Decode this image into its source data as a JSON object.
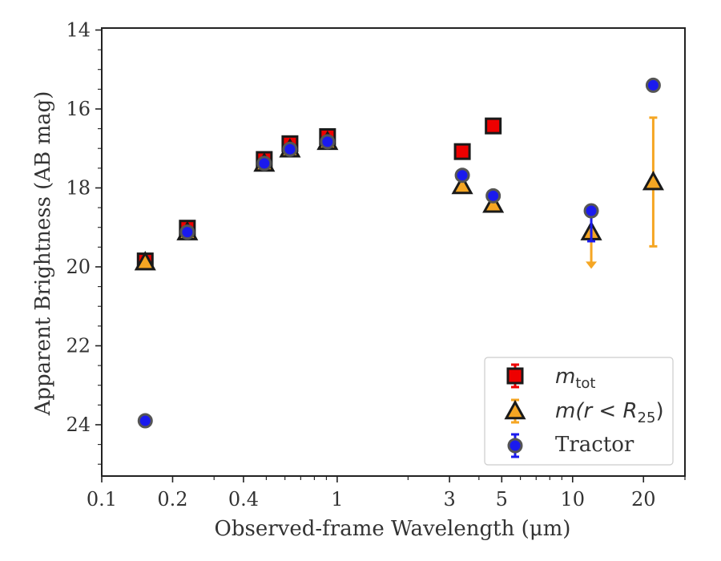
{
  "chart_data": {
    "type": "scatter",
    "xlabel": "Observed-frame Wavelength (μm)",
    "ylabel": "Apparent Brightness (AB mag)",
    "xscale": "log",
    "xlim": [
      0.1,
      30
    ],
    "ylim": [
      25.3,
      13.95
    ],
    "y_inverted": true,
    "x_ticks": [
      {
        "value": 0.1,
        "label": "0.1"
      },
      {
        "value": 0.2,
        "label": "0.2"
      },
      {
        "value": 0.4,
        "label": "0.4"
      },
      {
        "value": 1,
        "label": "1"
      },
      {
        "value": 3,
        "label": "3"
      },
      {
        "value": 5,
        "label": "5"
      },
      {
        "value": 10,
        "label": "10"
      },
      {
        "value": 20,
        "label": "20"
      }
    ],
    "y_ticks": [
      {
        "value": 14,
        "label": "14"
      },
      {
        "value": 16,
        "label": "16"
      },
      {
        "value": 18,
        "label": "18"
      },
      {
        "value": 20,
        "label": "20"
      },
      {
        "value": 22,
        "label": "22"
      },
      {
        "value": 24,
        "label": "24"
      }
    ],
    "grid": false,
    "legend_position": "lower-right",
    "series": [
      {
        "name_main": "m",
        "name_sub": "tot",
        "marker": "square",
        "color": "#ee0000",
        "edge_color": "#1a1a1a",
        "points": [
          {
            "x": 0.153,
            "y": 19.85,
            "err": 0.08
          },
          {
            "x": 0.231,
            "y": 19.02,
            "err": 0.08
          },
          {
            "x": 0.49,
            "y": 17.28,
            "err": 0.08
          },
          {
            "x": 0.63,
            "y": 16.88,
            "err": 0.08
          },
          {
            "x": 0.91,
            "y": 16.7,
            "err": 0.08
          },
          {
            "x": 3.4,
            "y": 17.08,
            "err": 0.05
          },
          {
            "x": 4.6,
            "y": 16.43,
            "err": 0.05
          }
        ]
      },
      {
        "name_main": "m(r < R",
        "name_sub": "25",
        "name_tail": ")",
        "marker": "triangle",
        "color": "#f5a623",
        "edge_color": "#1a1a1a",
        "points": [
          {
            "x": 0.153,
            "y": 19.88,
            "err": 0.05
          },
          {
            "x": 0.231,
            "y": 19.12,
            "err": 0.05
          },
          {
            "x": 0.49,
            "y": 17.38,
            "err": 0.05
          },
          {
            "x": 0.63,
            "y": 17.02,
            "err": 0.05
          },
          {
            "x": 0.91,
            "y": 16.83,
            "err": 0.05
          },
          {
            "x": 3.4,
            "y": 17.95,
            "err": 0.05
          },
          {
            "x": 4.6,
            "y": 18.42,
            "err": 0.05
          },
          {
            "x": 12.0,
            "y": 19.12,
            "err": 0.0,
            "upper_limit": true,
            "arrow_to": 20.05
          },
          {
            "x": 22.0,
            "y": 17.85,
            "err_low": 16.22,
            "err_high": 19.48
          }
        ]
      },
      {
        "name_main": "Tractor",
        "marker": "circle",
        "color": "#1a1aee",
        "edge_color": "#555555",
        "points": [
          {
            "x": 0.153,
            "y": 23.9,
            "err": 0.05
          },
          {
            "x": 0.231,
            "y": 19.12,
            "err": 0.05
          },
          {
            "x": 0.49,
            "y": 17.38,
            "err": 0.05
          },
          {
            "x": 0.63,
            "y": 17.02,
            "err": 0.05
          },
          {
            "x": 0.91,
            "y": 16.83,
            "err": 0.05
          },
          {
            "x": 3.4,
            "y": 17.68,
            "err": 0.05
          },
          {
            "x": 4.6,
            "y": 18.2,
            "err": 0.05
          },
          {
            "x": 12.0,
            "y": 18.58,
            "err_low": 18.58,
            "err_high": 19.35
          },
          {
            "x": 22.0,
            "y": 15.4,
            "err": 0.05
          }
        ]
      }
    ]
  }
}
